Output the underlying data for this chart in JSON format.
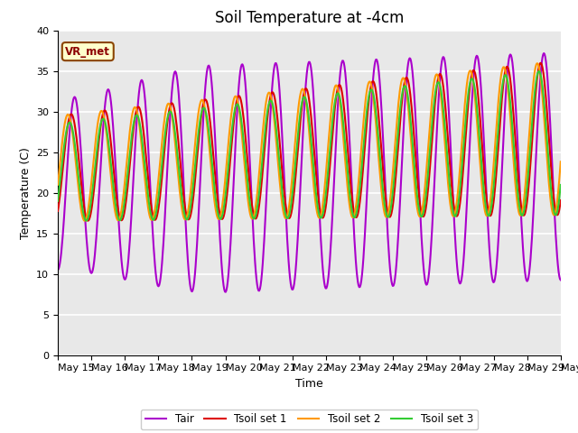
{
  "title": "Soil Temperature at -4cm",
  "xlabel": "Time",
  "ylabel": "Temperature (C)",
  "ylim": [
    0,
    40
  ],
  "yticks": [
    0,
    5,
    10,
    15,
    20,
    25,
    30,
    35,
    40
  ],
  "annotation_text": "VR_met",
  "series": {
    "Tair": {
      "color": "#aa00cc",
      "linewidth": 1.5,
      "zorder": 2
    },
    "Tsoil set 1": {
      "color": "#dd0000",
      "linewidth": 1.5,
      "zorder": 3
    },
    "Tsoil set 2": {
      "color": "#ff9900",
      "linewidth": 1.5,
      "zorder": 4
    },
    "Tsoil set 3": {
      "color": "#33cc33",
      "linewidth": 1.5,
      "zorder": 5
    }
  },
  "background_color": "#e8e8e8",
  "grid_color": "white",
  "fig_bg": "#ffffff",
  "title_fontsize": 12,
  "axis_label_fontsize": 9,
  "tick_fontsize": 8,
  "days": 15,
  "points_per_day": 48
}
